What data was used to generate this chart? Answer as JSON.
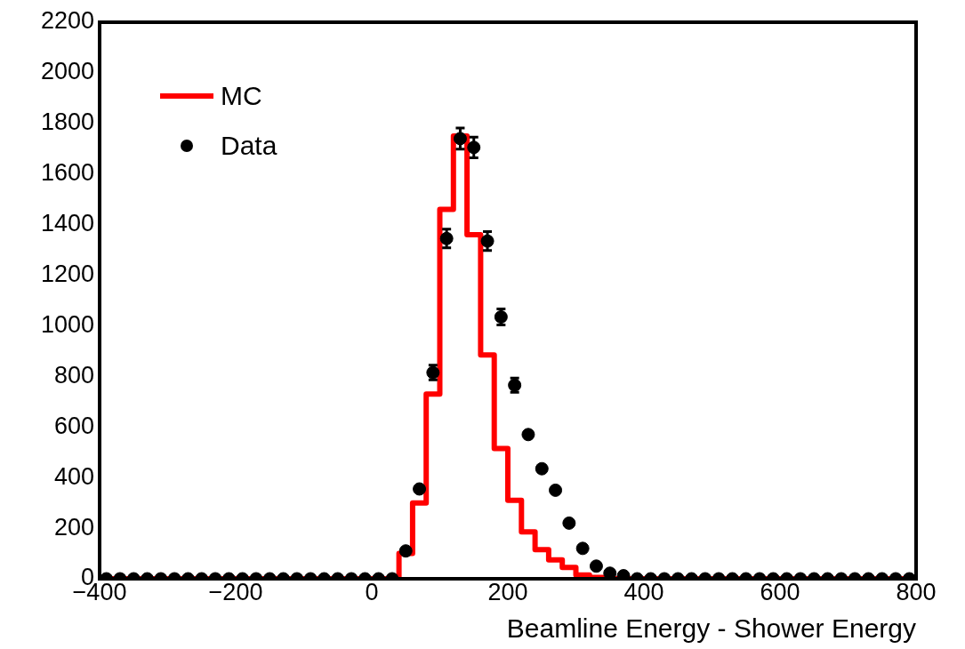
{
  "chart_data": {
    "type": "histogram",
    "xlabel": "Beamline Energy - Shower Energy",
    "bins": [
      -400,
      -380,
      -360,
      -340,
      -320,
      -300,
      -280,
      -260,
      -240,
      -220,
      -200,
      -180,
      -160,
      -140,
      -120,
      -100,
      -80,
      -60,
      -40,
      -20,
      0,
      20,
      40,
      60,
      80,
      100,
      120,
      140,
      160,
      180,
      200,
      220,
      240,
      260,
      280,
      300,
      320,
      340,
      360,
      380,
      400,
      420,
      440,
      460,
      480,
      500,
      520,
      540,
      560,
      580,
      600,
      620,
      640,
      660,
      680,
      700,
      720,
      740,
      760,
      780,
      800
    ],
    "series": [
      {
        "name": "MC",
        "type": "histogram",
        "color": "#ff0000",
        "values": [
          0,
          0,
          0,
          0,
          0,
          0,
          0,
          0,
          0,
          0,
          0,
          0,
          0,
          0,
          0,
          0,
          0,
          0,
          0,
          0,
          0,
          0,
          100,
          300,
          730,
          1460,
          1750,
          1360,
          885,
          515,
          310,
          185,
          115,
          75,
          45,
          15,
          5,
          0,
          0,
          0,
          0,
          0,
          0,
          0,
          0,
          0,
          0,
          0,
          0,
          0,
          0,
          0,
          0,
          0,
          0,
          0,
          0,
          0,
          0,
          0
        ]
      },
      {
        "name": "Data",
        "type": "scatter",
        "color": "#000000",
        "marker": "circle",
        "x": [
          -390,
          -370,
          -350,
          -330,
          -310,
          -290,
          -270,
          -250,
          -230,
          -210,
          -190,
          -170,
          -150,
          -130,
          -110,
          -90,
          -70,
          -50,
          -30,
          -10,
          10,
          30,
          50,
          70,
          90,
          110,
          130,
          150,
          170,
          190,
          210,
          230,
          250,
          270,
          290,
          310,
          330,
          350,
          370,
          390,
          410,
          430,
          450,
          470,
          490,
          510,
          530,
          550,
          570,
          590,
          610,
          630,
          650,
          670,
          690,
          710,
          730,
          750,
          770,
          790
        ],
        "values": [
          0,
          0,
          0,
          0,
          0,
          0,
          0,
          0,
          0,
          0,
          0,
          0,
          0,
          0,
          0,
          0,
          0,
          0,
          0,
          0,
          0,
          0,
          110,
          355,
          815,
          1345,
          1740,
          1705,
          1335,
          1035,
          765,
          570,
          435,
          350,
          220,
          120,
          50,
          22,
          12,
          0,
          0,
          0,
          0,
          0,
          0,
          0,
          0,
          0,
          0,
          0,
          0,
          0,
          0,
          0,
          0,
          0,
          0,
          0,
          0,
          0
        ],
        "errors": [
          null,
          null,
          null,
          null,
          null,
          null,
          null,
          null,
          null,
          null,
          null,
          null,
          null,
          null,
          null,
          null,
          null,
          null,
          null,
          null,
          null,
          null,
          null,
          null,
          29,
          37,
          42,
          41,
          37,
          32,
          28,
          null,
          null,
          null,
          null,
          null,
          null,
          null,
          null,
          null,
          null,
          null,
          null,
          null,
          null,
          null,
          null,
          null,
          null,
          null,
          null,
          null,
          null,
          null,
          null,
          null,
          null,
          null,
          null,
          null
        ]
      }
    ],
    "xlim": [
      -400,
      800
    ],
    "xticks": [
      -400,
      -200,
      0,
      200,
      400,
      600,
      800
    ],
    "ylim": [
      0,
      2200
    ],
    "yticks": [
      0,
      200,
      400,
      600,
      800,
      1000,
      1200,
      1400,
      1600,
      1800,
      2000,
      2200
    ],
    "grid": false,
    "legend": "top left"
  }
}
